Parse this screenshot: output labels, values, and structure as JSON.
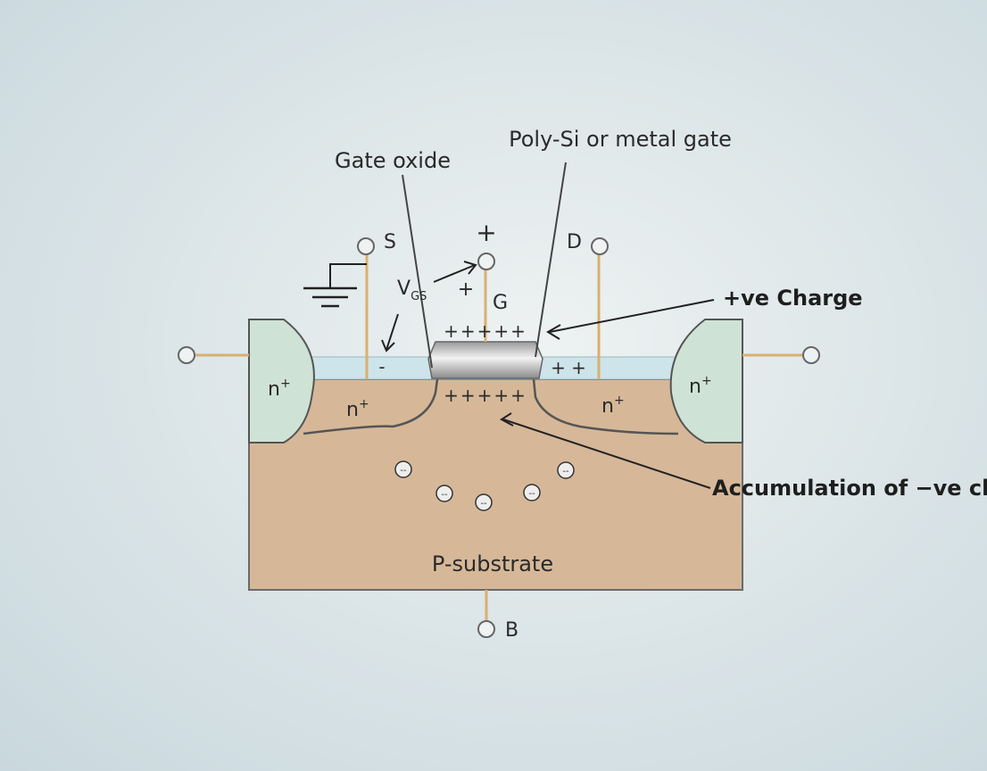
{
  "labels": {
    "gate_oxide": "Gate oxide",
    "gate_material": "Poly-Si or metal gate",
    "positive_charge": "+ve Charge",
    "accumulation": "Accumulation of −ve ch",
    "substrate": "P-substrate"
  },
  "terminals": {
    "source": "S",
    "drain": "D",
    "gate": "G",
    "body": "B"
  },
  "vgs": {
    "v": "V",
    "sub": "GS",
    "plus_top": "+",
    "plus_gate": "+"
  },
  "regions": {
    "outer_n_left": "n",
    "outer_n_right": "n",
    "source_n": "n",
    "drain_n": "n",
    "sup": "+"
  },
  "charges": {
    "gate_plus_row": "+++++",
    "channel_plus_row": "+++++",
    "drain_oxide_plus": "+ +",
    "source_oxide_minus": "-",
    "electron": "--"
  },
  "colors": {
    "substrate": "#d6b898",
    "n_region": "#cfe2d6",
    "oxide": "#cde4ea",
    "wire": "#d8b070",
    "gate": "#b8b8b8"
  }
}
